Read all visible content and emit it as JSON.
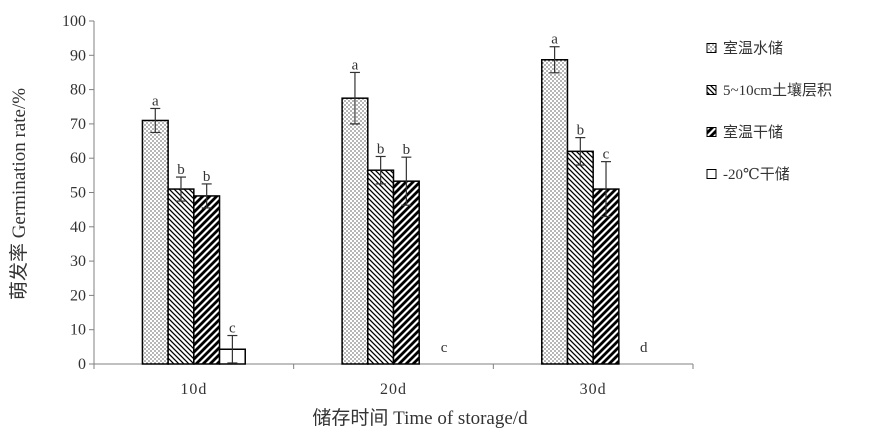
{
  "chart_data": {
    "type": "bar",
    "xlabel": "储存时间 Time of storage/d",
    "ylabel": "萌发率 Germination rate/%",
    "ylim": [
      0,
      100
    ],
    "yticks": [
      0,
      10,
      20,
      30,
      40,
      50,
      60,
      70,
      80,
      90,
      100
    ],
    "categories": [
      "10d",
      "20d",
      "30d"
    ],
    "legend_position": "right",
    "grid": false,
    "series": [
      {
        "name": "室温水储",
        "pattern": "dots",
        "values": [
          71,
          77.5,
          88.7
        ],
        "errors": [
          3.5,
          7.5,
          3.8
        ],
        "labels": [
          "a",
          "a",
          "a"
        ]
      },
      {
        "name": "5~10cm土壤层积",
        "pattern": "back-diagonal",
        "values": [
          51,
          56.5,
          62
        ],
        "errors": [
          3.5,
          4,
          4
        ],
        "labels": [
          "b",
          "b",
          "b"
        ]
      },
      {
        "name": "室温干储",
        "pattern": "forward-diagonal",
        "values": [
          49,
          53.3,
          51
        ],
        "errors": [
          3.5,
          7,
          8
        ],
        "labels": [
          "b",
          "b",
          "c"
        ]
      },
      {
        "name": "-20℃干储",
        "pattern": "empty",
        "values": [
          4.3,
          0,
          0
        ],
        "errors": [
          4,
          0,
          0
        ],
        "labels": [
          "c",
          "c",
          "d"
        ]
      }
    ]
  }
}
